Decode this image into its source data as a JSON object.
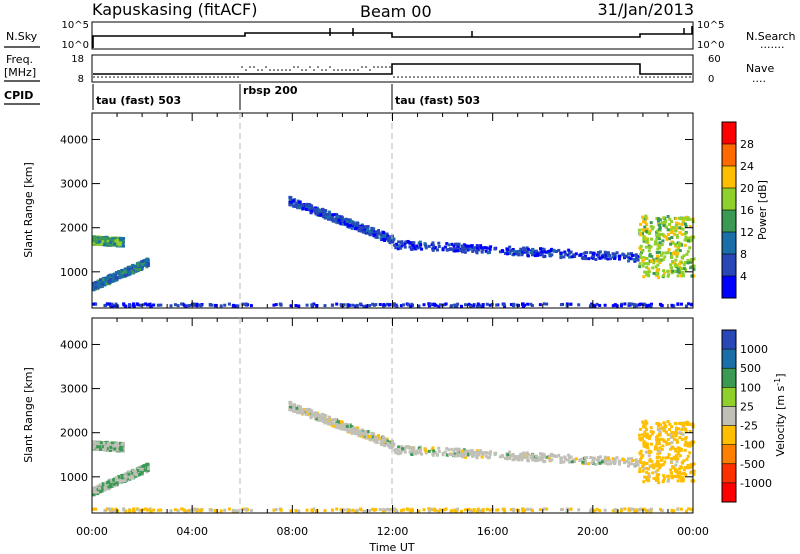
{
  "header": {
    "station": "Kapuskasing (fitACF)",
    "beam": "Beam 00",
    "date": "31/Jan/2013"
  },
  "sky_panel": {
    "left_label": "N.Sky",
    "left_ticks": [
      "10^5",
      "10^0"
    ],
    "right_ticks": [
      "10^5",
      "10^0"
    ],
    "right_label": "N.Search",
    "right_dots": "......."
  },
  "freq_panel": {
    "left_label_1": "Freq.",
    "left_label_2": "[MHz]",
    "left_ticks": [
      "18",
      "8"
    ],
    "right_ticks": [
      "60",
      "0"
    ],
    "right_label": "Nave",
    "right_dots": "....",
    "cpid_label": "CPID",
    "segments": [
      {
        "label": "tau (fast) 503",
        "start": 0,
        "end": 6
      },
      {
        "label": "rbsp 200",
        "start": 6,
        "end": 12
      },
      {
        "label": "tau (fast) 503",
        "start": 12,
        "end": 24
      }
    ]
  },
  "power_panel": {
    "ylabel": "Slant Range [km]",
    "yticks": [
      "4000",
      "3000",
      "2000",
      "1000"
    ],
    "colorbar_label": "Power [dB]",
    "colorbar_ticks": [
      "28",
      "24",
      "20",
      "16",
      "12",
      "8",
      "4"
    ],
    "colors": [
      "#ff0000",
      "#ff6a00",
      "#ffbf00",
      "#8fd12a",
      "#3a9a54",
      "#1a6fa8",
      "#2848b8",
      "#0000ff"
    ]
  },
  "velocity_panel": {
    "ylabel": "Slant Range [km]",
    "yticks": [
      "4000",
      "3000",
      "2000",
      "1000"
    ],
    "colorbar_label": "Velocity [m s",
    "colorbar_exp": "-1",
    "colorbar_label_end": "]",
    "colorbar_ticks": [
      "1000",
      "500",
      "100",
      "25",
      "-25",
      "-100",
      "-500",
      "-1000"
    ],
    "colors": [
      "#2848b8",
      "#1a6fa8",
      "#3a9a54",
      "#8fd12a",
      "#c0c0b8",
      "#ffbf00",
      "#ff8000",
      "#ff3000",
      "#ff0000"
    ]
  },
  "xaxis": {
    "label": "Time UT",
    "ticks": [
      "00:00",
      "04:00",
      "08:00",
      "12:00",
      "16:00",
      "20:00",
      "00:00"
    ]
  },
  "chart_data": {
    "type": "heatmap",
    "title": "Kapuskasing (fitACF)",
    "xlabel": "Time UT",
    "ylabel": "Slant Range [km]",
    "xlim": [
      0,
      24
    ],
    "ylim": [
      180,
      4600
    ],
    "mode_changes_hours": [
      6,
      12
    ],
    "scatter_features": [
      {
        "name": "early band",
        "t_start": 0.0,
        "t_end": 1.2,
        "range_start": 1750,
        "range_end": 1700,
        "power_db": 14,
        "velocity": 20
      },
      {
        "name": "early lower band",
        "t_start": 0.0,
        "t_end": 2.2,
        "range_start": 700,
        "range_end": 1250,
        "power_db": 10,
        "velocity": 20
      },
      {
        "name": "rbsp arc",
        "t_start": 7.8,
        "t_end": 12.0,
        "range_start": 2650,
        "range_end": 1750,
        "power_db": 6,
        "velocity": 0
      },
      {
        "name": "evening band",
        "t_start": 12.0,
        "t_end": 21.8,
        "range_start": 1650,
        "range_end": 1350,
        "power_db": 5,
        "velocity": 0
      },
      {
        "name": "late burst",
        "t_start": 21.8,
        "t_end": 24.0,
        "range_start": 1000,
        "range_end": 2200,
        "power_db": 18,
        "velocity": -50
      },
      {
        "name": "ground scatter",
        "t_start": 0.0,
        "t_end": 24.0,
        "range_start": 280,
        "range_end": 280,
        "power_db": 4,
        "velocity": -30
      }
    ]
  }
}
